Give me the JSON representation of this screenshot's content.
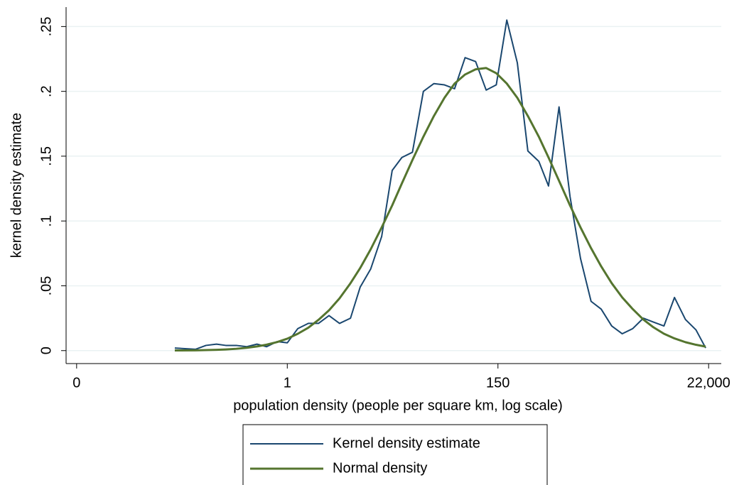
{
  "chart_data": {
    "type": "line",
    "xlabel": "population density (people per square km, log scale)",
    "ylabel": "kernel density estimate",
    "x": [
      -2.67,
      -2.18,
      -1.93,
      -1.68,
      -1.46,
      -1.21,
      -0.96,
      -0.72,
      -0.49,
      -0.24,
      0,
      0.25,
      0.5,
      0.74,
      0.99,
      1.24,
      1.5,
      1.73,
      1.98,
      2.24,
      2.49,
      2.72,
      2.97,
      3.23,
      3.48,
      3.73,
      3.97,
      4.22,
      4.47,
      4.72,
      4.96,
      5.21,
      5.46,
      5.71,
      5.97,
      6.2,
      6.45,
      6.71,
      6.96,
      7.21,
      7.45,
      7.7,
      7.95,
      8.2,
      8.45,
      8.69,
      8.94,
      9.19,
      9.45,
      9.7,
      9.93
    ],
    "series": [
      {
        "name": "Kernel density estimate",
        "color": "#1a476f",
        "values": [
          0.002,
          0.001,
          0.004,
          0.005,
          0.004,
          0.004,
          0.003,
          0.005,
          0.003,
          0.007,
          0.006,
          0.017,
          0.021,
          0.021,
          0.027,
          0.021,
          0.025,
          0.049,
          0.063,
          0.088,
          0.139,
          0.149,
          0.153,
          0.2,
          0.206,
          0.205,
          0.202,
          0.226,
          0.223,
          0.201,
          0.205,
          0.255,
          0.222,
          0.154,
          0.146,
          0.127,
          0.188,
          0.119,
          0.071,
          0.038,
          0.032,
          0.019,
          0.013,
          0.017,
          0.025,
          0.022,
          0.019,
          0.041,
          0.024,
          0.016,
          0.002
        ]
      },
      {
        "name": "Normal density",
        "color": "#55752f",
        "values": [
          0.0001,
          0.0002,
          0.0004,
          0.0006,
          0.0009,
          0.0014,
          0.0022,
          0.0032,
          0.0046,
          0.0066,
          0.0092,
          0.013,
          0.0177,
          0.0237,
          0.0311,
          0.0403,
          0.052,
          0.0637,
          0.0782,
          0.095,
          0.112,
          0.129,
          0.147,
          0.165,
          0.181,
          0.195,
          0.206,
          0.213,
          0.217,
          0.218,
          0.214,
          0.206,
          0.195,
          0.181,
          0.165,
          0.149,
          0.131,
          0.112,
          0.095,
          0.079,
          0.065,
          0.052,
          0.041,
          0.032,
          0.024,
          0.018,
          0.013,
          0.0094,
          0.0065,
          0.0045,
          0.0031
        ]
      }
    ],
    "xlim": [
      -5.25,
      10.3
    ],
    "xticks": [
      {
        "value": -5,
        "label": "0"
      },
      {
        "value": 0,
        "label": "1"
      },
      {
        "value": 5,
        "label": "150"
      },
      {
        "value": 10,
        "label": "22,000"
      }
    ],
    "ylim": [
      -0.01,
      0.265
    ],
    "yticks": [
      0,
      {
        "value": 0.05,
        "label": ".05"
      },
      {
        "value": 0.1,
        "label": ".1"
      },
      {
        "value": 0.15,
        "label": ".15"
      },
      {
        "value": 0.2,
        "label": ".2"
      },
      {
        "value": 0.25,
        "label": ".25"
      }
    ],
    "grid": true,
    "legend": "bottom"
  }
}
